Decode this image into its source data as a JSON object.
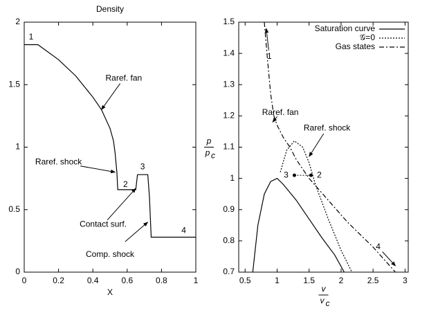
{
  "chart_data": [
    {
      "type": "line",
      "title": "Density",
      "xlabel": "X",
      "xlim": [
        0,
        1
      ],
      "ylim": [
        0,
        2
      ],
      "xticks": [
        0,
        0.2,
        0.4,
        0.6,
        0.8,
        1
      ],
      "yticks": [
        0,
        0.5,
        1,
        1.5,
        2
      ],
      "x": [
        0,
        0.08,
        0.1,
        0.2,
        0.3,
        0.4,
        0.45,
        0.5,
        0.52,
        0.53,
        0.54,
        0.545,
        0.65,
        0.66,
        0.72,
        0.73,
        0.74,
        1
      ],
      "series": [
        {
          "color": "#000000",
          "dash": "solid",
          "values": [
            1.82,
            1.82,
            1.8,
            1.7,
            1.57,
            1.4,
            1.3,
            1.15,
            1.05,
            0.95,
            0.8,
            0.66,
            0.66,
            0.78,
            0.78,
            0.6,
            0.28,
            0.28
          ]
        }
      ],
      "annotations": [
        {
          "text": "1",
          "x": 0.04,
          "y": 1.88
        },
        {
          "text": "Raref. fan",
          "x": 0.58,
          "y": 1.55,
          "ax": 0.45,
          "ay": 1.3
        },
        {
          "text": "Raref. shock",
          "x": 0.2,
          "y": 0.88,
          "ax": 0.53,
          "ay": 0.8
        },
        {
          "text": "2",
          "x": 0.59,
          "y": 0.7
        },
        {
          "text": "3",
          "x": 0.69,
          "y": 0.84
        },
        {
          "text": "Contact surf.",
          "x": 0.46,
          "y": 0.38,
          "ax": 0.65,
          "ay": 0.67
        },
        {
          "text": "Comp. shock",
          "x": 0.5,
          "y": 0.14,
          "ax": 0.72,
          "ay": 0.4
        },
        {
          "text": "4",
          "x": 0.93,
          "y": 0.33
        }
      ]
    },
    {
      "type": "line",
      "xlabel": {
        "top": "v",
        "bottom": "v",
        "sub": "c"
      },
      "ylabel": {
        "top": "p",
        "bottom": "p",
        "sub": "c"
      },
      "xlim": [
        0.4,
        3.05
      ],
      "ylim": [
        0.7,
        1.5
      ],
      "xticks": [
        0.5,
        1,
        1.5,
        2,
        2.5,
        3
      ],
      "yticks": [
        0.7,
        0.8,
        0.9,
        1,
        1.1,
        1.2,
        1.3,
        1.4,
        1.5
      ],
      "legend": "upper right",
      "series": [
        {
          "name": "Saturation curve",
          "color": "#000000",
          "dash": "solid",
          "x": [
            0.62,
            0.7,
            0.8,
            0.9,
            1.0,
            1.1,
            1.3,
            1.5,
            1.7,
            1.9,
            2.05
          ],
          "values": [
            0.7,
            0.85,
            0.95,
            0.99,
            1.0,
            0.98,
            0.93,
            0.87,
            0.81,
            0.755,
            0.7
          ]
        },
        {
          "name": "𝒢=0",
          "color": "#000000",
          "dash": "dotted",
          "x": [
            1.05,
            1.15,
            1.27,
            1.4,
            1.5,
            1.6,
            1.8,
            2.0,
            2.17
          ],
          "values": [
            1.02,
            1.09,
            1.12,
            1.1,
            1.05,
            0.98,
            0.87,
            0.77,
            0.7
          ]
        },
        {
          "name": "Gas states",
          "color": "#000000",
          "dash": "dashdot",
          "x": [
            0.8,
            0.85,
            0.9,
            0.95,
            1.0,
            1.1,
            1.2,
            1.3,
            1.5,
            1.8,
            2.1,
            2.5,
            2.85
          ],
          "values": [
            1.5,
            1.38,
            1.27,
            1.2,
            1.17,
            1.13,
            1.1,
            1.06,
            1.0,
            0.93,
            0.86,
            0.78,
            0.7
          ]
        }
      ],
      "markers": {
        "x": [
          1.27,
          1.53
        ],
        "y": [
          1.01,
          1.01
        ]
      },
      "annotations": [
        {
          "text": "1",
          "x": 0.88,
          "y": 1.39,
          "ax": 0.83,
          "ay": 1.48
        },
        {
          "text": "Raref. fan",
          "x": 1.05,
          "y": 1.21,
          "ax": 0.93,
          "ay": 1.18
        },
        {
          "text": "Raref. shock",
          "x": 1.78,
          "y": 1.16,
          "ax": 1.5,
          "ay": 1.07
        },
        {
          "text": "3",
          "x": 1.14,
          "y": 1.01
        },
        {
          "text": "2",
          "x": 1.66,
          "y": 1.01
        },
        {
          "text": "4",
          "x": 2.58,
          "y": 0.78,
          "ax": 2.85,
          "ay": 0.72
        }
      ]
    }
  ]
}
